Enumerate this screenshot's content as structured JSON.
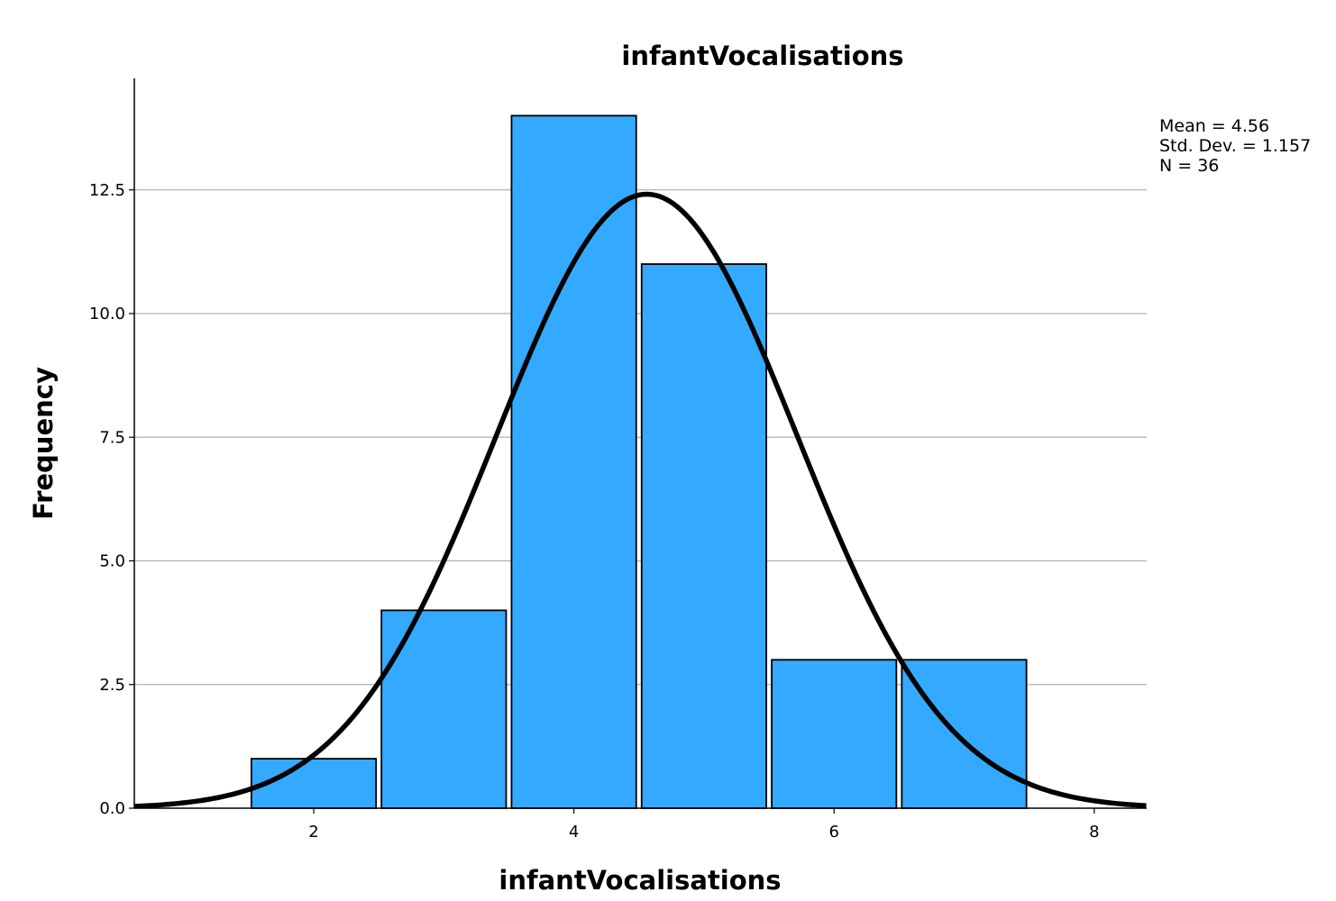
{
  "chart_data": {
    "type": "bar",
    "subtype": "histogram",
    "title": "infantVocalisations",
    "xlabel": "infantVocalisations",
    "ylabel": "Frequency",
    "bins": [
      {
        "start": 1.5,
        "end": 2.5,
        "count": 1
      },
      {
        "start": 2.5,
        "end": 3.5,
        "count": 4
      },
      {
        "start": 3.5,
        "end": 4.5,
        "count": 14
      },
      {
        "start": 4.5,
        "end": 5.5,
        "count": 11
      },
      {
        "start": 5.5,
        "end": 6.5,
        "count": 3
      },
      {
        "start": 6.5,
        "end": 7.5,
        "count": 3
      }
    ],
    "xlim": [
      0.6,
      8.4
    ],
    "ylim": [
      0,
      14.5
    ],
    "xticks": [
      2,
      4,
      6,
      8
    ],
    "xtick_labels": [
      "2",
      "4",
      "6",
      "8"
    ],
    "yticks": [
      0,
      2.5,
      5,
      7.5,
      10,
      12.5
    ],
    "ytick_labels": [
      "0.0",
      "2.5",
      "5.0",
      "7.5",
      "10.0",
      "12.5"
    ],
    "grid": "horizontal",
    "bar_color": "#33aaff",
    "bar_edge_color": "#000000",
    "curve_color": "#000000",
    "normal_curve": {
      "mean": 4.56,
      "sd": 1.157,
      "n": 36,
      "bin_width": 1
    },
    "stats": {
      "mean_label": "Mean = 4.56",
      "sd_label": "Std. Dev. = 1.157",
      "n_label": "N = 36"
    },
    "stats_placement": "top-right"
  }
}
